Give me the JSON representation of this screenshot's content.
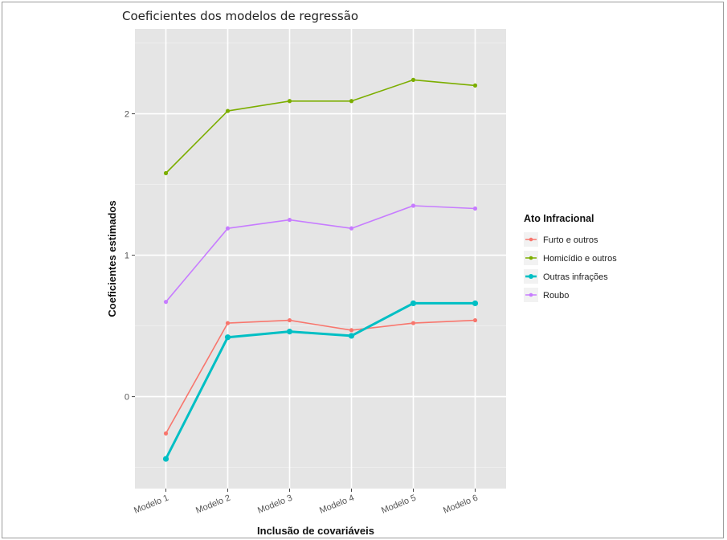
{
  "chart_data": {
    "type": "line",
    "title": "Coeficientes dos modelos de regressão",
    "xlabel": "Inclusão de covariáveis",
    "ylabel": "Coeficientes estimados",
    "categories": [
      "Modelo 1",
      "Modelo 2",
      "Modelo 3",
      "Modelo 4",
      "Modelo 5",
      "Modelo 6"
    ],
    "ylim": [
      -0.65,
      2.6
    ],
    "yticks": [
      0,
      1,
      2
    ],
    "grid": true,
    "legend_title": "Ato Infracional",
    "legend_position": "right",
    "series": [
      {
        "name": "Furto e outros",
        "color": "#f8766d",
        "values": [
          -0.26,
          0.52,
          0.54,
          0.47,
          0.52,
          0.54
        ]
      },
      {
        "name": "Homicídio e outros",
        "color": "#7cae00",
        "values": [
          1.58,
          2.02,
          2.09,
          2.09,
          2.24,
          2.2
        ]
      },
      {
        "name": "Outras infrações",
        "color": "#00bfc4",
        "values": [
          -0.44,
          0.42,
          0.46,
          0.43,
          0.66,
          0.66
        ]
      },
      {
        "name": "Roubo",
        "color": "#c77cff",
        "values": [
          0.67,
          1.19,
          1.25,
          1.19,
          1.35,
          1.33
        ]
      }
    ]
  }
}
